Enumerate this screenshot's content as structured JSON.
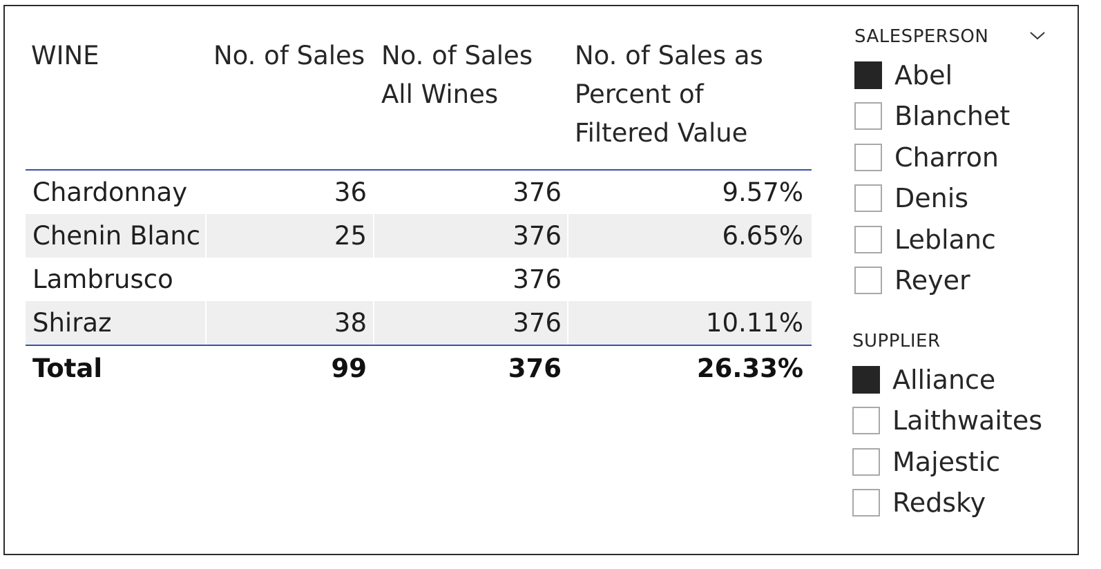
{
  "matrix": {
    "headers": {
      "wine": "WINE",
      "sales": "No. of Sales",
      "sales_all": "No. of Sales\nAll Wines",
      "sales_pct": "No. of Sales as\nPercent of\nFiltered Value"
    },
    "rows": [
      {
        "wine": "Chardonnay",
        "sales": "36",
        "sales_all": "376",
        "sales_pct": "9.57%"
      },
      {
        "wine": "Chenin Blanc",
        "sales": "25",
        "sales_all": "376",
        "sales_pct": "6.65%"
      },
      {
        "wine": "Lambrusco",
        "sales": "",
        "sales_all": "376",
        "sales_pct": ""
      },
      {
        "wine": "Shiraz",
        "sales": "38",
        "sales_all": "376",
        "sales_pct": "10.11%"
      }
    ],
    "total": {
      "label": "Total",
      "sales": "99",
      "sales_all": "376",
      "sales_pct": "26.33%"
    },
    "header_rule_color": "#3b4fa8",
    "row_shade_color": "#efefef"
  },
  "salesperson_slicer": {
    "title": "SALESPERSON",
    "dropdown_icon": "chevron-down-icon",
    "items": [
      {
        "label": "Abel",
        "checked": true
      },
      {
        "label": "Blanchet",
        "checked": false
      },
      {
        "label": "Charron",
        "checked": false
      },
      {
        "label": "Denis",
        "checked": false
      },
      {
        "label": "Leblanc",
        "checked": false
      },
      {
        "label": "Reyer",
        "checked": false
      }
    ]
  },
  "supplier_slicer": {
    "title": "SUPPLIER",
    "items": [
      {
        "label": "Alliance",
        "checked": true
      },
      {
        "label": "Laithwaites",
        "checked": false
      },
      {
        "label": "Majestic",
        "checked": false
      },
      {
        "label": "Redsky",
        "checked": false
      }
    ]
  }
}
